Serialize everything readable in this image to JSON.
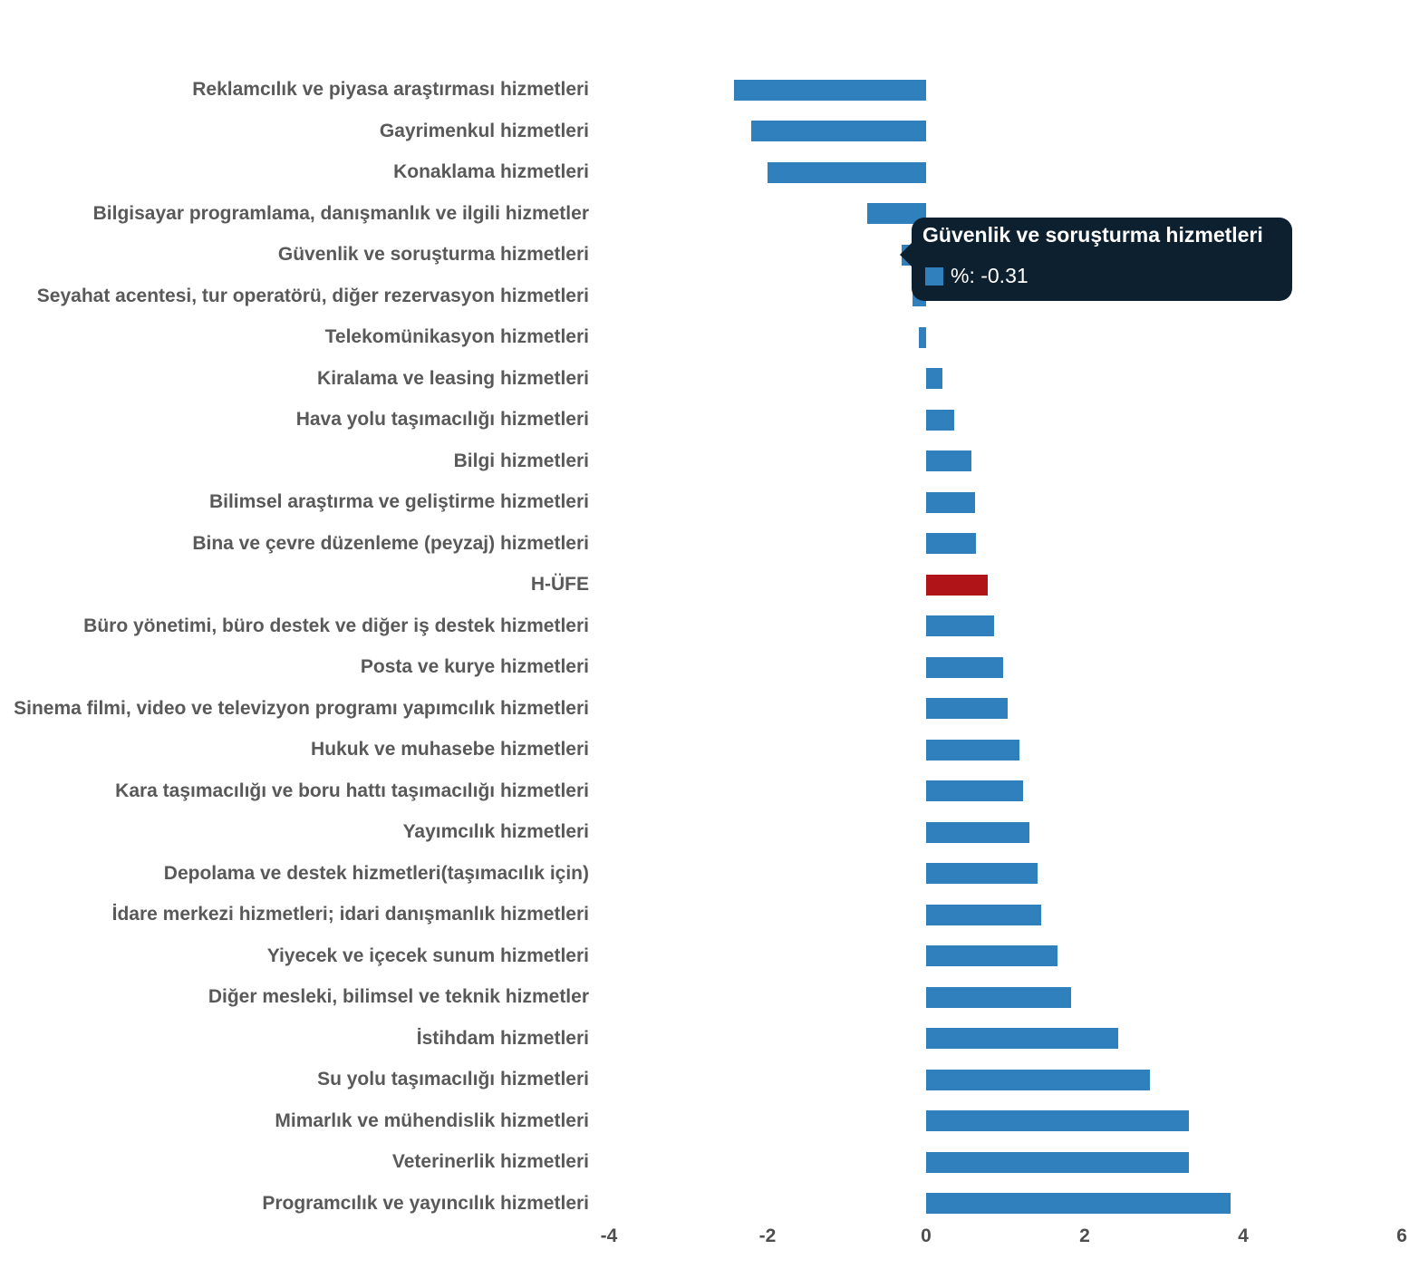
{
  "colors": {
    "bar_blue": "#3080bd",
    "bar_red": "#b01318",
    "label_gray": "#595959",
    "tick_gray": "#4e4e4e",
    "tooltip_bg": "#0c2030",
    "tooltip_text": "#ffffff"
  },
  "chart_data": {
    "type": "bar",
    "orientation": "horizontal",
    "title": "",
    "xlabel": "",
    "ylabel": "",
    "grid": false,
    "xlim": [
      -4,
      6
    ],
    "xticks": [
      "-4",
      "-2",
      "0",
      "2",
      "4",
      "6"
    ],
    "xtick_values": [
      -4,
      -2,
      0,
      2,
      4,
      6
    ],
    "categories": [
      "Reklamcılık ve piyasa araştırması hizmetleri",
      "Gayrimenkul hizmetleri",
      "Konaklama hizmetleri",
      "Bilgisayar programlama, danışmanlık ve ilgili hizmetler",
      "Güvenlik ve soruşturma hizmetleri",
      "Seyahat acentesi, tur operatörü, diğer rezervasyon hizmetleri",
      "Telekomünikasyon hizmetleri",
      "Kiralama ve leasing hizmetleri",
      "Hava yolu taşımacılığı hizmetleri",
      "Bilgi hizmetleri",
      "Bilimsel araştırma ve geliştirme hizmetleri",
      "Bina ve çevre düzenleme (peyzaj) hizmetleri",
      "H-ÜFE",
      "Büro yönetimi, büro destek ve diğer iş destek hizmetleri",
      "Posta ve kurye hizmetleri",
      "Sinema filmi, video ve televizyon programı yapımcılık hizmetleri",
      "Hukuk ve muhasebe hizmetleri",
      "Kara taşımacılığı ve boru hattı taşımacılığı hizmetleri",
      "Yayımcılık hizmetleri",
      "Depolama ve destek hizmetleri(taşımacılık için)",
      "İdare merkezi hizmetleri; idari danışmanlık hizmetleri",
      "Yiyecek ve içecek sunum hizmetleri",
      "Diğer mesleki, bilimsel ve teknik hizmetler",
      "İstihdam hizmetleri",
      "Su yolu taşımacılığı hizmetleri",
      "Mimarlık ve mühendislik hizmetleri",
      "Veterinerlik hizmetleri",
      "Programcılık ve yayıncılık hizmetleri"
    ],
    "values": [
      -2.42,
      -2.21,
      -2.0,
      -0.74,
      -0.31,
      -0.17,
      -0.09,
      0.2,
      0.35,
      0.57,
      0.62,
      0.63,
      0.78,
      0.86,
      0.97,
      1.03,
      1.18,
      1.22,
      1.3,
      1.41,
      1.45,
      1.66,
      1.83,
      2.42,
      2.82,
      3.31,
      3.31,
      3.84
    ],
    "highlight_category": "H-ÜFE",
    "tooltip": {
      "title": "Güvenlik ve soruşturma hizmetleri",
      "text": "%: -0.31",
      "label": "%",
      "value": "-0.31",
      "target_category_index": 4
    }
  }
}
